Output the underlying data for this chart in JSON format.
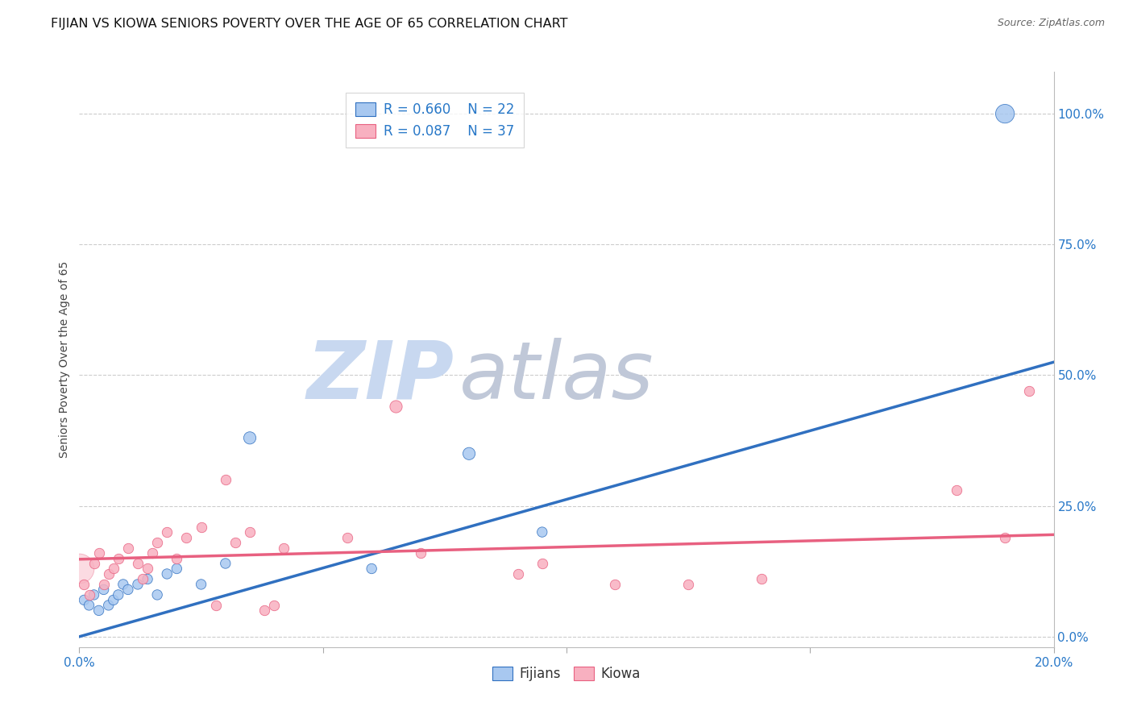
{
  "title": "FIJIAN VS KIOWA SENIORS POVERTY OVER THE AGE OF 65 CORRELATION CHART",
  "source": "Source: ZipAtlas.com",
  "ylabel": "Seniors Poverty Over the Age of 65",
  "xlim": [
    0.0,
    0.2
  ],
  "ylim": [
    -0.02,
    1.08
  ],
  "xticks": [
    0.0,
    0.05,
    0.1,
    0.15,
    0.2
  ],
  "xtick_labels": [
    "0.0%",
    "",
    "",
    "",
    "20.0%"
  ],
  "ytick_labels_right": [
    "0.0%",
    "25.0%",
    "50.0%",
    "75.0%",
    "100.0%"
  ],
  "yticks_right": [
    0.0,
    0.25,
    0.5,
    0.75,
    1.0
  ],
  "fijian_color": "#A8C8F0",
  "kiowa_color": "#F8B0C0",
  "fijian_line_color": "#3070C0",
  "kiowa_line_color": "#E86080",
  "background_color": "#FFFFFF",
  "grid_color": "#CCCCCC",
  "watermark_zip_color": "#C8D8F0",
  "watermark_atlas_color": "#C0C8D8",
  "fijian_x": [
    0.001,
    0.002,
    0.003,
    0.004,
    0.005,
    0.006,
    0.007,
    0.008,
    0.009,
    0.01,
    0.012,
    0.014,
    0.016,
    0.018,
    0.02,
    0.025,
    0.03,
    0.035,
    0.06,
    0.08,
    0.095,
    0.19
  ],
  "fijian_y": [
    0.07,
    0.06,
    0.08,
    0.05,
    0.09,
    0.06,
    0.07,
    0.08,
    0.1,
    0.09,
    0.1,
    0.11,
    0.08,
    0.12,
    0.13,
    0.1,
    0.14,
    0.38,
    0.13,
    0.35,
    0.2,
    1.0
  ],
  "fijian_sizes": [
    80,
    80,
    80,
    80,
    80,
    80,
    80,
    80,
    80,
    80,
    80,
    80,
    80,
    80,
    80,
    80,
    80,
    120,
    80,
    120,
    80,
    280
  ],
  "kiowa_x": [
    0.0,
    0.001,
    0.002,
    0.003,
    0.004,
    0.005,
    0.006,
    0.007,
    0.008,
    0.01,
    0.012,
    0.013,
    0.014,
    0.015,
    0.016,
    0.018,
    0.02,
    0.022,
    0.025,
    0.028,
    0.03,
    0.032,
    0.035,
    0.038,
    0.04,
    0.042,
    0.055,
    0.065,
    0.07,
    0.09,
    0.095,
    0.11,
    0.125,
    0.14,
    0.18,
    0.19,
    0.195
  ],
  "kiowa_y": [
    0.13,
    0.1,
    0.08,
    0.14,
    0.16,
    0.1,
    0.12,
    0.13,
    0.15,
    0.17,
    0.14,
    0.11,
    0.13,
    0.16,
    0.18,
    0.2,
    0.15,
    0.19,
    0.21,
    0.06,
    0.3,
    0.18,
    0.2,
    0.05,
    0.06,
    0.17,
    0.19,
    0.44,
    0.16,
    0.12,
    0.14,
    0.1,
    0.1,
    0.11,
    0.28,
    0.19,
    0.47
  ],
  "kiowa_sizes": [
    700,
    80,
    80,
    80,
    80,
    80,
    80,
    80,
    80,
    80,
    80,
    80,
    80,
    80,
    80,
    80,
    80,
    80,
    80,
    80,
    80,
    80,
    80,
    80,
    80,
    80,
    80,
    120,
    80,
    80,
    80,
    80,
    80,
    80,
    80,
    80,
    80
  ],
  "fijian_trendline_x": [
    0.0,
    0.2
  ],
  "fijian_trendline_y": [
    0.0,
    0.525
  ],
  "kiowa_trendline_x": [
    0.0,
    0.2
  ],
  "kiowa_trendline_y": [
    0.148,
    0.195
  ],
  "title_fontsize": 11.5,
  "axis_label_fontsize": 10,
  "tick_fontsize": 11,
  "legend_fontsize": 12
}
